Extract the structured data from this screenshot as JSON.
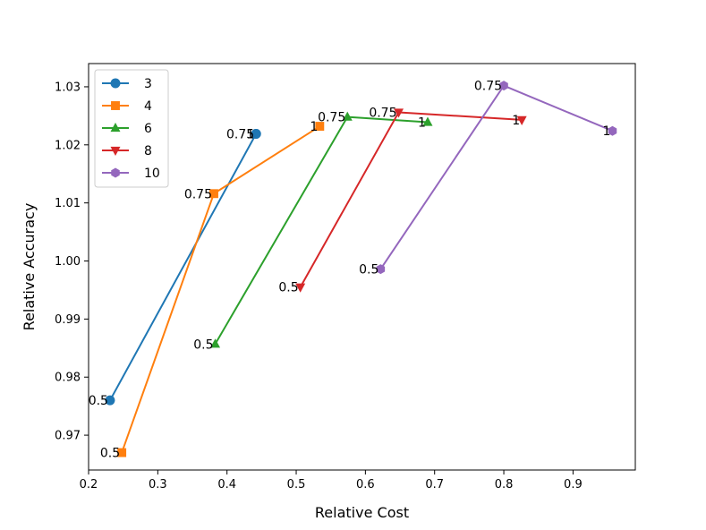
{
  "chart_data": {
    "type": "line",
    "title": "",
    "xlabel": "Relative Cost",
    "ylabel": "Relative Accuracy",
    "xlim": [
      0.2,
      0.99
    ],
    "ylim": [
      0.964,
      1.034
    ],
    "xticks": [
      0.2,
      0.3,
      0.4,
      0.5,
      0.6,
      0.7,
      0.8,
      0.9
    ],
    "xtick_labels": [
      "0.2",
      "0.3",
      "0.4",
      "0.5",
      "0.6",
      "0.7",
      "0.8",
      "0.9"
    ],
    "yticks": [
      0.97,
      0.98,
      0.99,
      1.0,
      1.01,
      1.02,
      1.03
    ],
    "ytick_labels": [
      "0.97",
      "0.98",
      "0.99",
      "1.00",
      "1.01",
      "1.02",
      "1.03"
    ],
    "legend_position": "top-left",
    "grid": false,
    "series": [
      {
        "name": "3",
        "color": "#1f77b4",
        "marker": "circle",
        "points": [
          {
            "x": 0.231,
            "y": 0.976,
            "label": "0.5"
          },
          {
            "x": 0.442,
            "y": 1.0219,
            "label": "0.75"
          },
          {
            "x": 0.442,
            "y": 1.0219,
            "label": "1"
          }
        ]
      },
      {
        "name": "4",
        "color": "#ff7f0e",
        "marker": "square",
        "points": [
          {
            "x": 0.248,
            "y": 0.967,
            "label": "0.5"
          },
          {
            "x": 0.381,
            "y": 1.0116,
            "label": "0.75"
          },
          {
            "x": 0.534,
            "y": 1.0232,
            "label": "1"
          }
        ]
      },
      {
        "name": "6",
        "color": "#2ca02c",
        "marker": "triangle-up",
        "points": [
          {
            "x": 0.383,
            "y": 0.9857,
            "label": "0.5"
          },
          {
            "x": 0.574,
            "y": 1.0248,
            "label": "0.75"
          },
          {
            "x": 0.69,
            "y": 1.0239,
            "label": "1"
          }
        ]
      },
      {
        "name": "8",
        "color": "#d62728",
        "marker": "triangle-down",
        "points": [
          {
            "x": 0.506,
            "y": 0.9955,
            "label": "0.5"
          },
          {
            "x": 0.648,
            "y": 1.0256,
            "label": "0.75"
          },
          {
            "x": 0.826,
            "y": 1.0243,
            "label": "1"
          }
        ]
      },
      {
        "name": "10",
        "color": "#9467bd",
        "marker": "hexagon",
        "points": [
          {
            "x": 0.622,
            "y": 0.9986,
            "label": "0.5"
          },
          {
            "x": 0.8,
            "y": 1.0302,
            "label": "0.75"
          },
          {
            "x": 0.957,
            "y": 1.0224,
            "label": "1"
          }
        ]
      }
    ]
  }
}
